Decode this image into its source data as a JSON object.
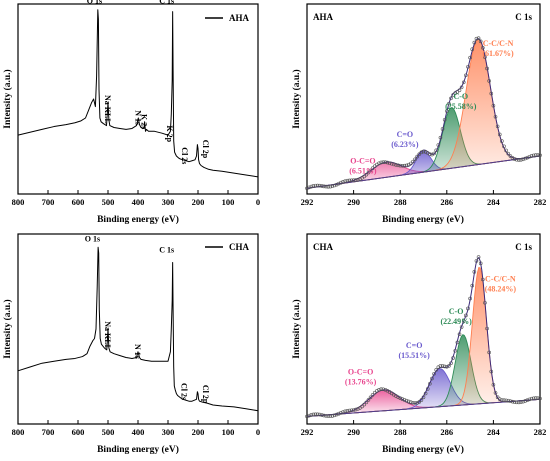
{
  "chart_data": [
    {
      "id": "survey_aha",
      "type": "line",
      "xlabel": "Binding energy (eV)",
      "ylabel": "Intensity (a.u.)",
      "xlim": [
        800,
        0
      ],
      "xticks": [
        800,
        700,
        600,
        500,
        400,
        300,
        200,
        100,
        0
      ],
      "ylim": [
        0,
        1
      ],
      "legend": {
        "label": "AHA",
        "position": "top-right"
      },
      "series": [
        {
          "name": "AHA",
          "x": [
            800,
            760,
            720,
            680,
            640,
            610,
            590,
            575,
            565,
            555,
            548,
            542,
            538,
            534,
            532,
            530,
            527,
            523,
            515,
            505,
            500,
            497,
            494,
            480,
            460,
            440,
            420,
            405,
            399,
            395,
            390,
            380,
            378,
            375,
            372,
            365,
            345,
            320,
            300,
            292,
            289,
            286,
            284.5,
            283,
            281,
            278,
            275,
            272,
            265,
            260,
            250,
            240,
            230,
            220,
            210,
            205,
            202,
            200,
            198,
            195,
            190,
            180,
            165,
            150,
            120,
            80,
            40,
            0
          ],
          "y": [
            0.31,
            0.325,
            0.34,
            0.355,
            0.365,
            0.375,
            0.385,
            0.4,
            0.44,
            0.48,
            0.5,
            0.46,
            0.62,
            0.97,
            0.92,
            0.55,
            0.4,
            0.38,
            0.37,
            0.36,
            0.48,
            0.39,
            0.36,
            0.35,
            0.345,
            0.34,
            0.345,
            0.36,
            0.4,
            0.365,
            0.35,
            0.345,
            0.38,
            0.33,
            0.34,
            0.33,
            0.33,
            0.32,
            0.31,
            0.33,
            0.42,
            0.6,
            0.96,
            0.65,
            0.28,
            0.22,
            0.21,
            0.2,
            0.19,
            0.185,
            0.18,
            0.175,
            0.17,
            0.175,
            0.18,
            0.2,
            0.26,
            0.24,
            0.18,
            0.16,
            0.15,
            0.14,
            0.13,
            0.125,
            0.12,
            0.11,
            0.1,
            0.09
          ]
        }
      ],
      "annotations": [
        {
          "text": "O 1s",
          "x": 532,
          "y": 0.97
        },
        {
          "text": "Na KLL",
          "x": 497,
          "y": 0.5
        },
        {
          "text": "N 1s",
          "x": 399,
          "y": 0.42
        },
        {
          "text": "K 2s",
          "x": 378,
          "y": 0.4
        },
        {
          "text": "K 2p",
          "x": 293,
          "y": 0.34
        },
        {
          "text": "C 1s",
          "x": 284.5,
          "y": 0.97
        },
        {
          "text": "Cl 2s",
          "x": 270,
          "y": 0.23
        },
        {
          "text": "Cl 2p",
          "x": 200,
          "y": 0.27
        }
      ]
    },
    {
      "id": "c1s_aha",
      "type": "line",
      "title": "C 1s",
      "xlabel": "Binding energy (eV)",
      "ylabel": "Intensity (a.u.)",
      "xlim": [
        292,
        282
      ],
      "xticks": [
        292,
        290,
        288,
        286,
        284,
        282
      ],
      "ylim": [
        0,
        1
      ],
      "sample_label": "AHA",
      "baseline": {
        "x": [
          292,
          282
        ],
        "y": [
          0.03,
          0.2
        ]
      },
      "peaks": [
        {
          "name": "O-C=O",
          "center": 288.6,
          "height": 0.08,
          "sigma": 0.65,
          "color": "#e8458e",
          "percent": "6.51%"
        },
        {
          "name": "C=O",
          "center": 287.0,
          "height": 0.11,
          "sigma": 0.32,
          "color": "#6a5acd",
          "percent": "6.23%"
        },
        {
          "name": "C-O",
          "center": 285.8,
          "height": 0.32,
          "sigma": 0.38,
          "color": "#2e8b57",
          "percent": "25.58%"
        },
        {
          "name": "C-C/C-N",
          "center": 284.65,
          "height": 0.66,
          "sigma": 0.52,
          "color": "#ff7f50",
          "percent": "61.67%"
        }
      ]
    },
    {
      "id": "survey_cha",
      "type": "line",
      "xlabel": "Binding energy (eV)",
      "ylabel": "Intensity (a.u.)",
      "xlim": [
        800,
        0
      ],
      "xticks": [
        800,
        700,
        600,
        500,
        400,
        300,
        200,
        100,
        0
      ],
      "ylim": [
        0,
        1
      ],
      "legend": {
        "label": "CHA",
        "position": "top-right"
      },
      "series": [
        {
          "name": "CHA",
          "x": [
            800,
            760,
            720,
            680,
            640,
            610,
            585,
            570,
            560,
            550,
            545,
            540,
            536,
            533,
            531,
            529,
            526,
            522,
            512,
            504,
            500,
            497,
            493,
            480,
            460,
            440,
            420,
            405,
            400,
            395,
            390,
            375,
            355,
            330,
            310,
            300,
            292,
            289,
            286,
            284.5,
            283,
            281,
            279,
            276,
            272,
            268,
            260,
            250,
            240,
            230,
            220,
            205,
            202,
            200,
            198,
            195,
            185,
            170,
            150,
            120,
            80,
            40,
            0
          ],
          "y": [
            0.28,
            0.3,
            0.32,
            0.33,
            0.34,
            0.345,
            0.355,
            0.37,
            0.41,
            0.44,
            0.45,
            0.5,
            0.72,
            0.93,
            0.9,
            0.6,
            0.45,
            0.42,
            0.4,
            0.39,
            0.5,
            0.4,
            0.38,
            0.37,
            0.36,
            0.35,
            0.345,
            0.35,
            0.38,
            0.35,
            0.34,
            0.335,
            0.33,
            0.33,
            0.33,
            0.33,
            0.38,
            0.5,
            0.65,
            0.85,
            0.6,
            0.3,
            0.2,
            0.18,
            0.16,
            0.15,
            0.14,
            0.13,
            0.125,
            0.12,
            0.12,
            0.13,
            0.17,
            0.16,
            0.13,
            0.12,
            0.115,
            0.11,
            0.1,
            0.095,
            0.09,
            0.08,
            0.07
          ]
        }
      ],
      "annotations": [
        {
          "text": "O 1s",
          "x": 532,
          "y": 0.93
        },
        {
          "text": "Na KLL",
          "x": 497,
          "y": 0.52
        },
        {
          "text": "N 1s",
          "x": 400,
          "y": 0.4
        },
        {
          "text": "C 1s",
          "x": 284.5,
          "y": 0.87
        },
        {
          "text": "Cl 2s",
          "x": 272,
          "y": 0.2
        },
        {
          "text": "Cl 2p",
          "x": 200,
          "y": 0.19
        }
      ]
    },
    {
      "id": "c1s_cha",
      "type": "line",
      "title": "C 1s",
      "xlabel": "Binding energy (eV)",
      "ylabel": "Intensity (a.u.)",
      "xlim": [
        292,
        282
      ],
      "xticks": [
        292,
        290,
        288,
        286,
        284,
        282
      ],
      "ylim": [
        0,
        1
      ],
      "sample_label": "CHA",
      "baseline": {
        "x": [
          292,
          282
        ],
        "y": [
          0.04,
          0.13
        ]
      },
      "peaks": [
        {
          "name": "O-C=O",
          "center": 288.7,
          "height": 0.11,
          "sigma": 0.65,
          "color": "#e8458e",
          "percent": "13.76%"
        },
        {
          "name": "C=O",
          "center": 286.3,
          "height": 0.2,
          "sigma": 0.45,
          "color": "#6a5acd",
          "percent": "15.51%"
        },
        {
          "name": "C-O",
          "center": 285.3,
          "height": 0.37,
          "sigma": 0.34,
          "color": "#2e8b57",
          "percent": "22.49%"
        },
        {
          "name": "C-C/C-N",
          "center": 284.6,
          "height": 0.72,
          "sigma": 0.3,
          "color": "#ff7f50",
          "percent": "48.24%"
        }
      ]
    }
  ]
}
